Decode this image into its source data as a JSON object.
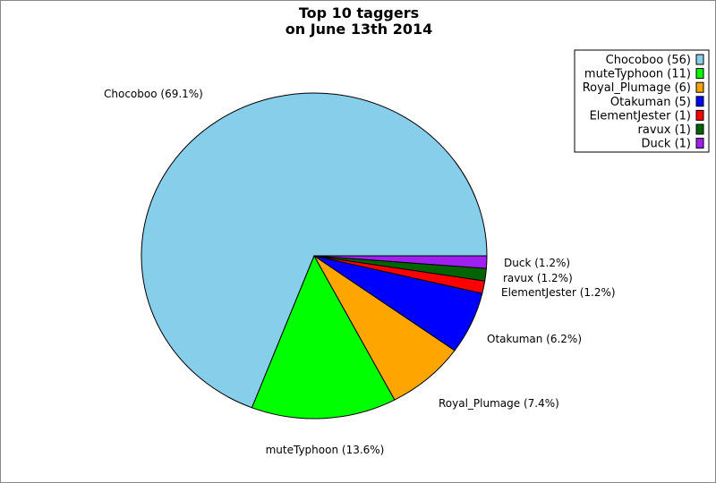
{
  "chart_data": {
    "type": "pie",
    "title_lines": [
      "Top 10 taggers",
      "on June 13th 2014"
    ],
    "legend_position": "top-right",
    "slices": [
      {
        "name": "Chocoboo",
        "value": 56,
        "percent": 69.1,
        "color": "#87CEEB",
        "legend": "Chocoboo (56)",
        "label": "Chocoboo (69.1%)"
      },
      {
        "name": "muteTyphoon",
        "value": 11,
        "percent": 13.6,
        "color": "#00FF00",
        "legend": "muteTyphoon (11)",
        "label": "muteTyphoon (13.6%)"
      },
      {
        "name": "Royal_Plumage",
        "value": 6,
        "percent": 7.4,
        "color": "#FFA500",
        "legend": "Royal_Plumage (6)",
        "label": "Royal_Plumage (7.4%)"
      },
      {
        "name": "Otakuman",
        "value": 5,
        "percent": 6.2,
        "color": "#0000FF",
        "legend": "Otakuman (5)",
        "label": "Otakuman (6.2%)"
      },
      {
        "name": "ElementJester",
        "value": 1,
        "percent": 1.2,
        "color": "#FF0000",
        "legend": "ElementJester (1)",
        "label": "ElementJester (1.2%)"
      },
      {
        "name": "ravux",
        "value": 1,
        "percent": 1.2,
        "color": "#006400",
        "legend": "ravux (1)",
        "label": "ravux (1.2%)"
      },
      {
        "name": "Duck",
        "value": 1,
        "percent": 1.2,
        "color": "#A020F0",
        "legend": "Duck (1)",
        "label": "Duck (1.2%)"
      }
    ]
  }
}
